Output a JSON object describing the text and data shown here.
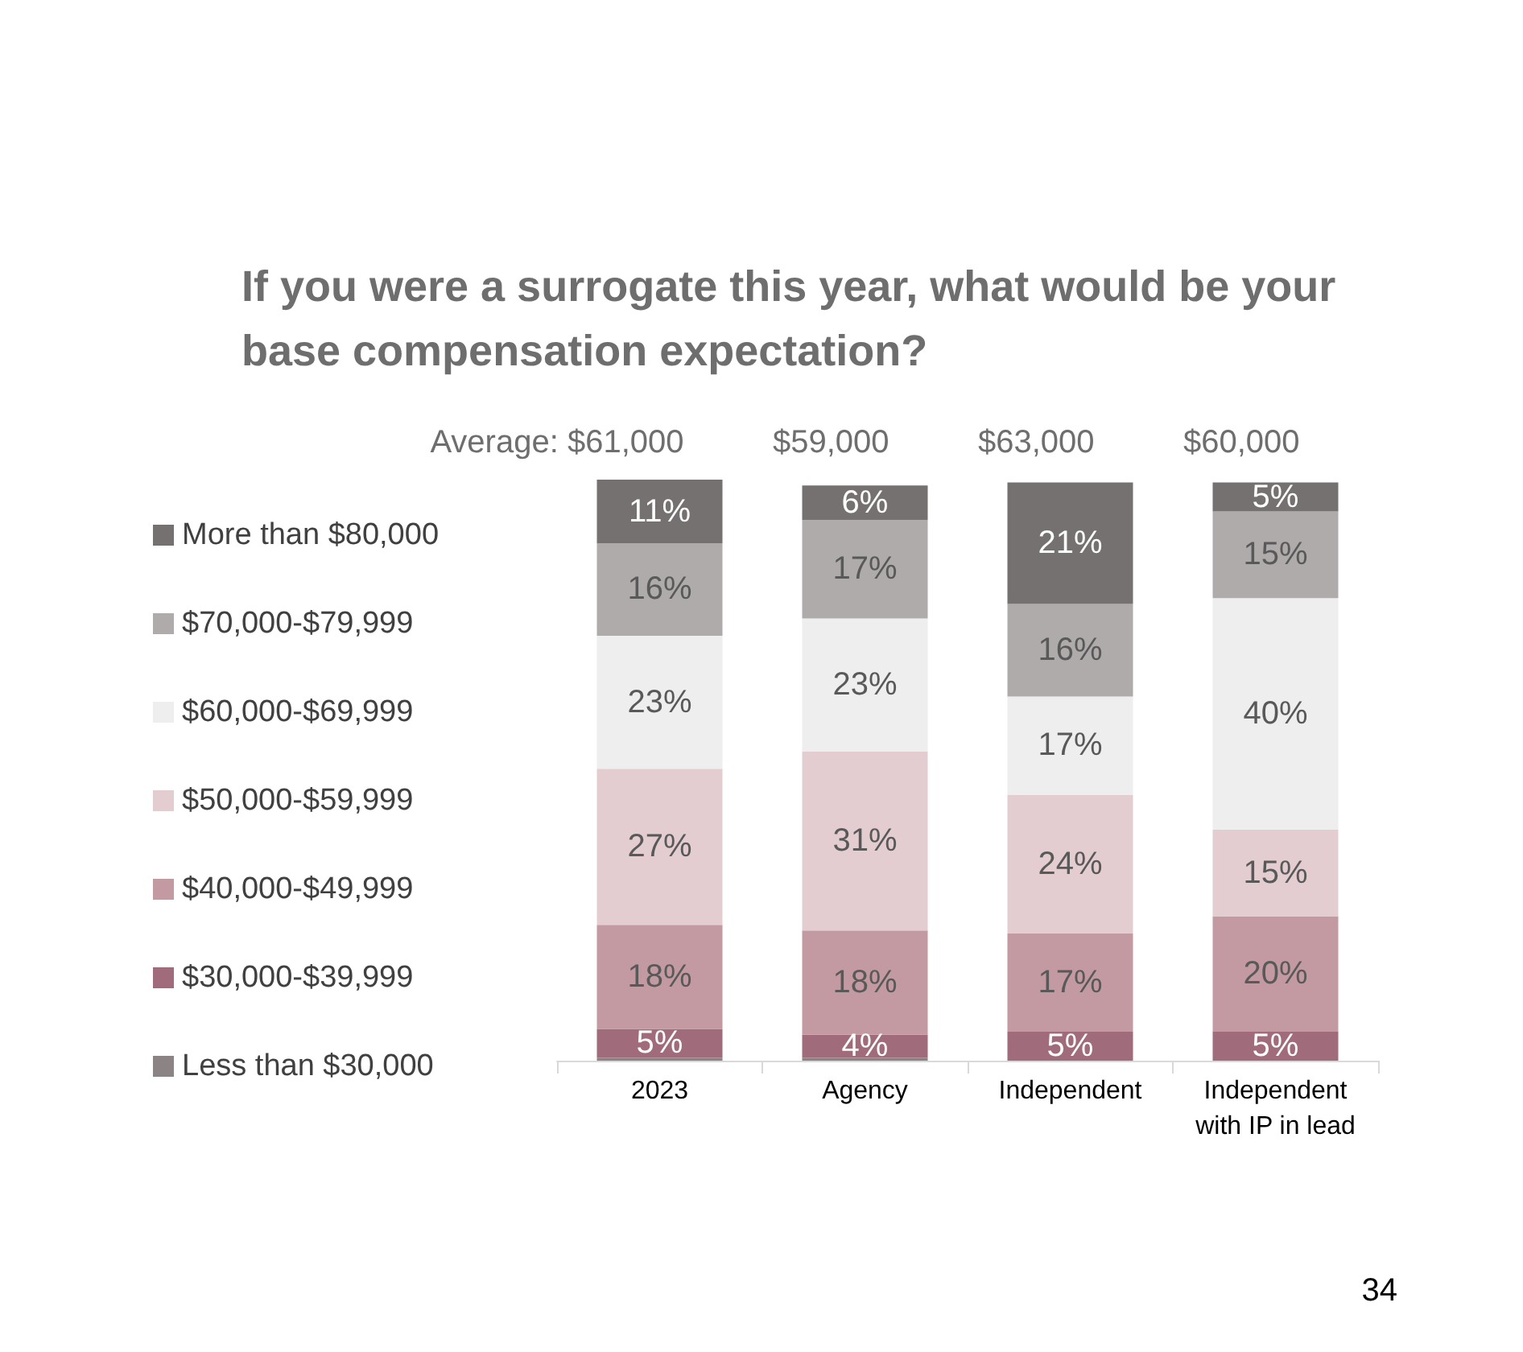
{
  "chart_data": {
    "type": "bar",
    "title": "If you were a surrogate this year, what would be your base compensation expectation?",
    "categories": [
      "2023",
      "Agency",
      "Independent",
      "Independent\nwith IP in lead"
    ],
    "stacked": true,
    "legend": "left",
    "series": [
      {
        "name": "Less than $30,000",
        "color": "#8c8484",
        "values": [
          0.5,
          0.5,
          null,
          null
        ],
        "value_labels": [
          null,
          null,
          null,
          null
        ]
      },
      {
        "name": "$30,000-$39,999",
        "color": "#a06b7a",
        "values": [
          5,
          4,
          5,
          5
        ],
        "value_labels": [
          "5%",
          "4%",
          "5%",
          "5%"
        ]
      },
      {
        "name": "$40,000-$49,999",
        "color": "#c39aa2",
        "values": [
          18,
          18,
          17,
          20
        ],
        "value_labels": [
          "18%",
          "18%",
          "17%",
          "20%"
        ]
      },
      {
        "name": "$50,000-$59,999",
        "color": "#e3cdd1",
        "values": [
          27,
          31,
          24,
          15
        ],
        "value_labels": [
          "27%",
          "31%",
          "24%",
          "15%"
        ]
      },
      {
        "name": "$60,000-$69,999",
        "color": "#eeeeee",
        "values": [
          23,
          23,
          17,
          40
        ],
        "value_labels": [
          "23%",
          "23%",
          "17%",
          "40%"
        ]
      },
      {
        "name": "$70,000-$79,999",
        "color": "#afabab",
        "values": [
          16,
          17,
          16,
          15
        ],
        "value_labels": [
          "16%",
          "17%",
          "16%",
          "15%"
        ]
      },
      {
        "name": "More than $80,000",
        "color": "#767171",
        "values": [
          11,
          6,
          21,
          5
        ],
        "value_labels": [
          "11%",
          "6%",
          "21%",
          "5%"
        ]
      }
    ],
    "annotations": [
      "Average: $61,000",
      "$59,000",
      "$63,000",
      "$60,000",
      "34"
    ]
  }
}
